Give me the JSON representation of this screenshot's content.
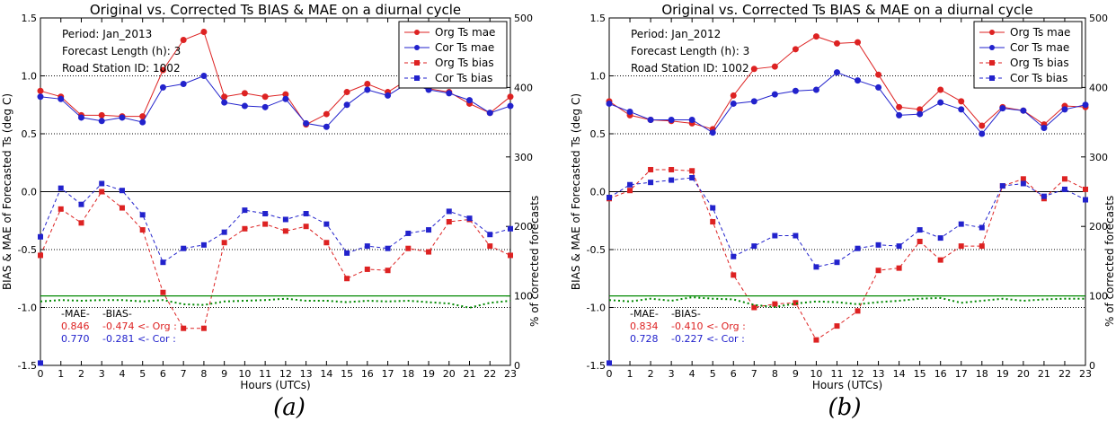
{
  "chart_data": [
    {
      "type": "line",
      "panel_label": "(a)",
      "title": "Original vs. Corrected Ts BIAS & MAE on a diurnal cycle",
      "xlabel": "Hours (UTCs)",
      "ylabel": "BIAS & MAE of Forecasted Ts (deg C)",
      "y2label": "% of corrected forecasts",
      "xlim": [
        0,
        23
      ],
      "ylim": [
        -1.5,
        1.5
      ],
      "y2lim": [
        0,
        500
      ],
      "xticks": [
        "0",
        "1",
        "2",
        "3",
        "4",
        "5",
        "6",
        "7",
        "8",
        "9",
        "10",
        "11",
        "12",
        "13",
        "14",
        "15",
        "16",
        "17",
        "18",
        "19",
        "20",
        "21",
        "22",
        "23"
      ],
      "yticks": [
        "-1.5",
        "-1.0",
        "-0.5",
        "0.0",
        "0.5",
        "1.0",
        "1.5"
      ],
      "y2ticks": [
        "0",
        "100",
        "200",
        "300",
        "400",
        "500"
      ],
      "grid": "dotted horizontal at -1.0, -0.5, 0.5, 1.0",
      "legend_position": "top-right",
      "info": [
        "Period: Jan_2013",
        "Forecast Length (h):  3",
        "Road Station ID: 1002"
      ],
      "x": [
        0,
        1,
        2,
        3,
        4,
        5,
        6,
        7,
        8,
        9,
        10,
        11,
        12,
        13,
        14,
        15,
        16,
        17,
        18,
        19,
        20,
        21,
        22,
        23
      ],
      "series": [
        {
          "name": "Org Ts mae",
          "style": "solid-circle",
          "color": "#dd2222",
          "values": [
            0.87,
            0.82,
            0.66,
            0.66,
            0.65,
            0.65,
            1.05,
            1.31,
            1.38,
            0.82,
            0.85,
            0.82,
            0.84,
            0.58,
            0.67,
            0.86,
            0.93,
            0.86,
            0.97,
            0.89,
            0.86,
            0.76,
            0.68,
            0.82
          ]
        },
        {
          "name": "Cor Ts mae",
          "style": "solid-circle",
          "color": "#2222cc",
          "values": [
            0.82,
            0.8,
            0.64,
            0.61,
            0.64,
            0.6,
            0.9,
            0.93,
            1.0,
            0.77,
            0.74,
            0.73,
            0.8,
            0.59,
            0.56,
            0.75,
            0.88,
            0.83,
            0.94,
            0.88,
            0.85,
            0.79,
            0.68,
            0.74
          ]
        },
        {
          "name": "Org Ts bias",
          "style": "dashed-square",
          "color": "#dd2222",
          "values": [
            -0.55,
            -0.15,
            -0.27,
            0.0,
            -0.14,
            -0.33,
            -0.87,
            -1.18,
            -1.18,
            -0.44,
            -0.32,
            -0.28,
            -0.34,
            -0.3,
            -0.44,
            -0.75,
            -0.67,
            -0.68,
            -0.49,
            -0.52,
            -0.26,
            -0.24,
            -0.47,
            -0.55
          ]
        },
        {
          "name": "Cor Ts bias",
          "style": "dashed-square",
          "color": "#2222cc",
          "values": [
            -0.39,
            0.03,
            -0.11,
            0.07,
            0.01,
            -0.2,
            -0.61,
            -0.49,
            -0.46,
            -0.35,
            -0.16,
            -0.19,
            -0.24,
            -0.19,
            -0.28,
            -0.53,
            -0.47,
            -0.49,
            -0.36,
            -0.33,
            -0.17,
            -0.23,
            -0.37,
            -0.32
          ]
        },
        {
          "name": "% corrected",
          "axis": "y2",
          "style": "green-dotted",
          "color": "#008800",
          "values": [
            92,
            94,
            93,
            94,
            94,
            92,
            94,
            88,
            87,
            92,
            93,
            94,
            96,
            93,
            93,
            91,
            93,
            92,
            93,
            91,
            89,
            83,
            90,
            93
          ]
        },
        {
          "name": "100% reference",
          "axis": "y2",
          "style": "green-solid",
          "color": "#008800",
          "values": [
            100,
            100,
            100,
            100,
            100,
            100,
            100,
            100,
            100,
            100,
            100,
            100,
            100,
            100,
            100,
            100,
            100,
            100,
            100,
            100,
            100,
            100,
            100,
            100
          ]
        },
        {
          "name": "Cor marker",
          "style": "square",
          "color": "#2222cc",
          "points": [
            [
              0,
              -1.48
            ]
          ]
        }
      ],
      "summary": {
        "mae_header": "-MAE-",
        "bias_header": "-BIAS-",
        "org_mae": "0.846",
        "org_bias": "-0.474 <- Org :",
        "cor_mae": "0.770",
        "cor_bias": "-0.281 <- Cor :"
      }
    },
    {
      "type": "line",
      "panel_label": "(b)",
      "title": "Original vs. Corrected Ts BIAS & MAE on a diurnal cycle",
      "xlabel": "Hours (UTCs)",
      "ylabel": "BIAS & MAE of Forecasted Ts (deg C)",
      "y2label": "% of corrected forecasts",
      "xlim": [
        0,
        23
      ],
      "ylim": [
        -1.5,
        1.5
      ],
      "y2lim": [
        0,
        500
      ],
      "xticks": [
        "0",
        "1",
        "2",
        "3",
        "4",
        "5",
        "6",
        "7",
        "8",
        "9",
        "10",
        "11",
        "12",
        "13",
        "14",
        "15",
        "16",
        "17",
        "18",
        "19",
        "20",
        "21",
        "22",
        "23"
      ],
      "yticks": [
        "-1.5",
        "-1.0",
        "-0.5",
        "0.0",
        "0.5",
        "1.0",
        "1.5"
      ],
      "y2ticks": [
        "0",
        "100",
        "200",
        "300",
        "400",
        "500"
      ],
      "grid": "dotted horizontal at -1.0, -0.5, 0.5, 1.0",
      "legend_position": "top-right",
      "info": [
        "Period: Jan_2012",
        "Forecast Length (h):  3",
        "Road Station ID: 1002"
      ],
      "x": [
        0,
        1,
        2,
        3,
        4,
        5,
        6,
        7,
        8,
        9,
        10,
        11,
        12,
        13,
        14,
        15,
        16,
        17,
        18,
        19,
        20,
        21,
        22,
        23
      ],
      "series": [
        {
          "name": "Org Ts mae",
          "style": "solid-circle",
          "color": "#dd2222",
          "values": [
            0.78,
            0.66,
            0.62,
            0.61,
            0.59,
            0.54,
            0.83,
            1.06,
            1.08,
            1.23,
            1.34,
            1.28,
            1.29,
            1.01,
            0.73,
            0.71,
            0.88,
            0.78,
            0.57,
            0.73,
            0.7,
            0.58,
            0.74,
            0.73
          ]
        },
        {
          "name": "Cor Ts mae",
          "style": "solid-circle",
          "color": "#2222cc",
          "values": [
            0.76,
            0.69,
            0.62,
            0.62,
            0.62,
            0.51,
            0.76,
            0.78,
            0.84,
            0.87,
            0.88,
            1.03,
            0.96,
            0.9,
            0.66,
            0.67,
            0.77,
            0.71,
            0.5,
            0.72,
            0.7,
            0.55,
            0.71,
            0.75
          ]
        },
        {
          "name": "Org Ts bias",
          "style": "dashed-square",
          "color": "#dd2222",
          "values": [
            -0.06,
            0.01,
            0.19,
            0.19,
            0.18,
            -0.26,
            -0.72,
            -1.0,
            -0.97,
            -0.96,
            -1.28,
            -1.16,
            -1.03,
            -0.68,
            -0.66,
            -0.43,
            -0.59,
            -0.47,
            -0.47,
            0.05,
            0.11,
            -0.06,
            0.11,
            0.02
          ]
        },
        {
          "name": "Cor Ts bias",
          "style": "dashed-square",
          "color": "#2222cc",
          "values": [
            -0.05,
            0.06,
            0.08,
            0.1,
            0.12,
            -0.14,
            -0.56,
            -0.47,
            -0.38,
            -0.38,
            -0.65,
            -0.61,
            -0.49,
            -0.46,
            -0.47,
            -0.33,
            -0.4,
            -0.28,
            -0.31,
            0.05,
            0.07,
            -0.04,
            0.02,
            -0.07
          ]
        },
        {
          "name": "% corrected",
          "axis": "y2",
          "style": "green-dotted",
          "color": "#008800",
          "values": [
            94,
            92,
            96,
            93,
            98,
            96,
            95,
            87,
            84,
            89,
            92,
            91,
            88,
            91,
            93,
            96,
            97,
            90,
            93,
            96,
            93,
            95,
            96,
            96
          ]
        },
        {
          "name": "100% reference",
          "axis": "y2",
          "style": "green-solid",
          "color": "#008800",
          "values": [
            100,
            100,
            100,
            100,
            100,
            100,
            100,
            100,
            100,
            100,
            100,
            100,
            100,
            100,
            100,
            100,
            100,
            100,
            100,
            100,
            100,
            100,
            100,
            100
          ]
        },
        {
          "name": "Cor marker",
          "style": "square",
          "color": "#2222cc",
          "points": [
            [
              0,
              -1.48
            ]
          ]
        }
      ],
      "summary": {
        "mae_header": "-MAE-",
        "bias_header": "-BIAS-",
        "org_mae": "0.834",
        "org_bias": "-0.410 <- Org :",
        "cor_mae": "0.728",
        "cor_bias": "-0.227 <- Cor :"
      }
    }
  ]
}
